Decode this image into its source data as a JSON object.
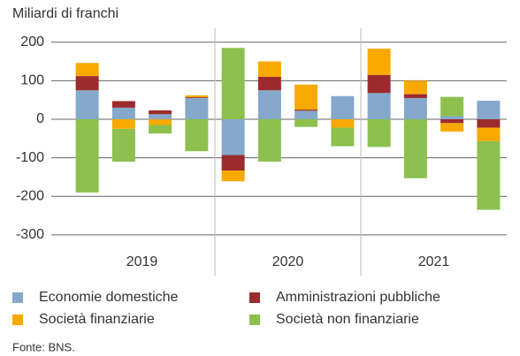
{
  "chart_data": {
    "type": "stacked_bar",
    "y_axis_label": "Miliardi di franchi",
    "categories": [
      null,
      null,
      null,
      null,
      null,
      null,
      null,
      null,
      null,
      null,
      null,
      null
    ],
    "year_labels": [
      "2019",
      "2020",
      "2021"
    ],
    "series": [
      {
        "name": "Economie domestiche",
        "color": "#86a8cb",
        "values": [
          75,
          30,
          13,
          55,
          -93,
          75,
          22,
          60,
          68,
          55,
          8,
          48
        ]
      },
      {
        "name": "Amministrazioni pubbliche",
        "color": "#9c2b2e",
        "values": [
          37,
          17,
          10,
          2,
          -40,
          35,
          3,
          0,
          47,
          10,
          -10,
          -22
        ]
      },
      {
        "name": "Società finanziarie",
        "color": "#f7a900",
        "values": [
          34,
          -25,
          -15,
          5,
          -28,
          40,
          65,
          -22,
          68,
          35,
          -22,
          -35
        ]
      },
      {
        "name": "Società non finanziarie",
        "color": "#8dc04f",
        "values": [
          -190,
          -85,
          -22,
          -83,
          185,
          -110,
          -20,
          -48,
          -72,
          -153,
          50,
          -178
        ]
      }
    ],
    "ylim": [
      -337,
      236
    ],
    "yticks": [
      200,
      100,
      0,
      -100,
      -200,
      -300
    ],
    "grid": true,
    "source": "Fonte: BNS."
  }
}
